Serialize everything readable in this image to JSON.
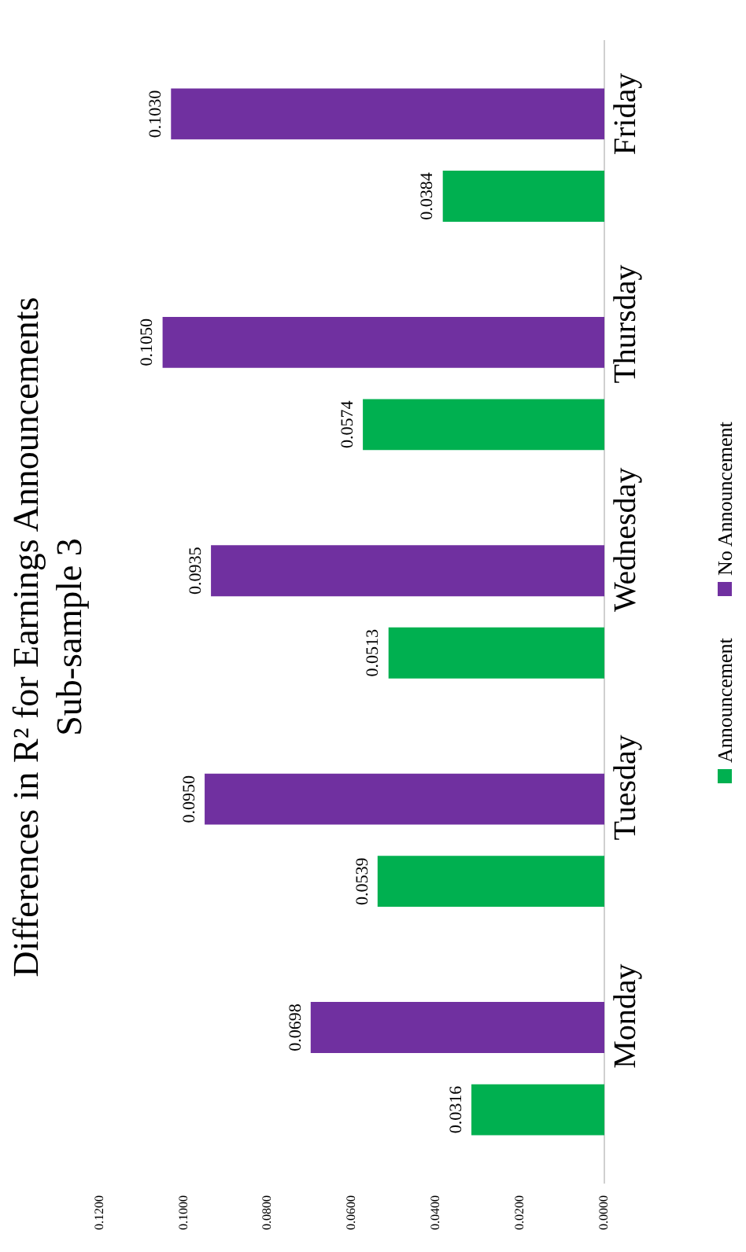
{
  "chart_data": {
    "type": "bar",
    "orientation": "horizontal",
    "title": "Differences in R² for Earnings Announcements",
    "subtitle": "Sub-sample 3",
    "categories": [
      "Friday",
      "Thursday",
      "Wednesday",
      "Tuesday",
      "Monday"
    ],
    "series": [
      {
        "name": "Announcement",
        "color": "#00b050",
        "values": [
          0.0384,
          0.0574,
          0.0513,
          0.0539,
          0.0316
        ],
        "value_labels": [
          "0.0384",
          "0.0574",
          "0.0513",
          "0.0539",
          "0.0316"
        ]
      },
      {
        "name": "No Announcement",
        "color": "#7030a0",
        "values": [
          0.103,
          0.105,
          0.0935,
          0.095,
          0.0698
        ],
        "value_labels": [
          "0.1030",
          "0.1050",
          "0.0935",
          "0.0950",
          "0.0698"
        ]
      }
    ],
    "xlim": [
      0.12,
      0
    ],
    "xticks": [
      {
        "value": 0.12,
        "label": "0.1200"
      },
      {
        "value": 0.1,
        "label": "0.1000"
      },
      {
        "value": 0.08,
        "label": "0.0800"
      },
      {
        "value": 0.06,
        "label": "0.0600"
      },
      {
        "value": 0.04,
        "label": "0.0400"
      },
      {
        "value": 0.02,
        "label": "0.0200"
      },
      {
        "value": 0,
        "label": "0.0000"
      }
    ],
    "grid": false,
    "legend": "right"
  }
}
